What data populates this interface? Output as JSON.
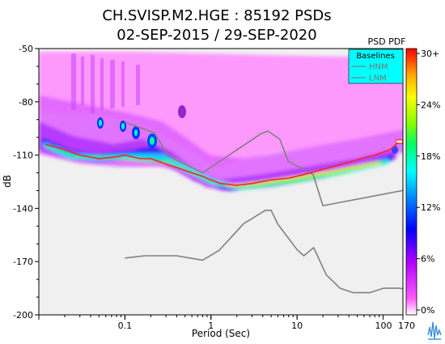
{
  "chart_data": {
    "type": "heatmap",
    "title_line1": "CH.SVISP.M2.HGE : 85192 PSDs",
    "title_line2": "02-SEP-2015 / 29-SEP-2020",
    "xlabel": "Period (Sec)",
    "ylabel": "dB",
    "x_scale": "log",
    "xlim": [
      0.01,
      170
    ],
    "ylim": [
      -200,
      -50
    ],
    "x_ticks": [
      {
        "value": 0.1,
        "label": "0.1"
      },
      {
        "value": 1,
        "label": "1"
      },
      {
        "value": 10,
        "label": "10"
      },
      {
        "value": 100,
        "label": "100"
      },
      {
        "value": 170,
        "label": "170"
      }
    ],
    "y_ticks": [
      -50,
      -80,
      -110,
      -140,
      -170,
      -200
    ],
    "colorbar": {
      "title": "PSD PDF",
      "tick_labels": [
        "30+",
        "24%",
        "18%",
        "12%",
        "6%",
        "0%"
      ]
    },
    "legend": {
      "title": "Baselines",
      "placement": "top-right",
      "entries": [
        "HNM",
        "LNM"
      ]
    },
    "series": [
      {
        "name": "HNM",
        "x": [
          0.1,
          0.22,
          0.32,
          0.8,
          3.8,
          4.6,
          6.3,
          7.9,
          15.4,
          20,
          354.8
        ],
        "y": [
          -91.5,
          -97.4,
          -110.5,
          -120,
          -98,
          -96.5,
          -101,
          -113.5,
          -121,
          -138.5,
          -127
        ]
      },
      {
        "name": "LNM",
        "x": [
          0.1,
          0.17,
          0.4,
          0.8,
          1.24,
          2.4,
          4.3,
          5,
          6,
          10,
          12,
          15.6,
          21.9,
          31.6,
          45,
          70,
          101,
          154,
          328,
          600
        ],
        "y": [
          -168,
          -166.7,
          -166.7,
          -169.2,
          -163.7,
          -148.6,
          -141.1,
          -141.1,
          -149,
          -163.2,
          -166.7,
          -162.1,
          -177.5,
          -185,
          -187.5,
          -187.5,
          -185,
          -185,
          -187.5,
          -184.4
        ]
      },
      {
        "name": "mode",
        "x": [
          0.012,
          0.02,
          0.03,
          0.05,
          0.08,
          0.1,
          0.15,
          0.2,
          0.3,
          0.4,
          0.6,
          0.8,
          1,
          1.3,
          2,
          3,
          5,
          8,
          12,
          20,
          40,
          80,
          120,
          150
        ],
        "y": [
          -104,
          -107,
          -110,
          -112,
          -111,
          -110,
          -112,
          -112,
          -115,
          -117,
          -120,
          -122,
          -124,
          -126,
          -127,
          -126,
          -124,
          -123,
          -121,
          -118,
          -114,
          -110,
          -107,
          -103
        ]
      }
    ]
  }
}
